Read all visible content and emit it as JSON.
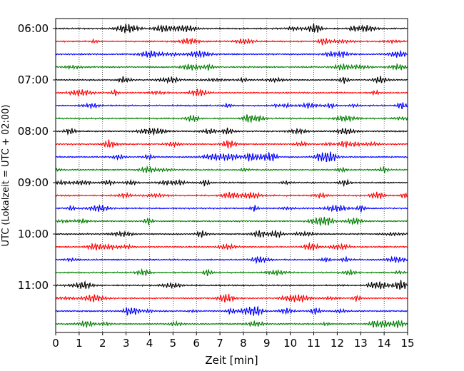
{
  "chart_data": {
    "type": "line",
    "title": "",
    "xlabel": "Zeit  [min]",
    "ylabel": "UTC (Lokalzeit = UTC + 02:00)",
    "xlim": [
      0,
      15
    ],
    "x_ticks": [
      "0",
      "1",
      "2",
      "3",
      "4",
      "5",
      "6",
      "7",
      "8",
      "9",
      "10",
      "11",
      "12",
      "13",
      "14",
      "15"
    ],
    "y_tick_labels": [
      "06:00",
      "07:00",
      "08:00",
      "09:00",
      "10:00",
      "11:00"
    ],
    "grid": "vertical dotted lines at each minute",
    "trace_interval_minutes": 15,
    "trace_start_times": [
      "06:00",
      "06:15",
      "06:30",
      "06:45",
      "07:00",
      "07:15",
      "07:30",
      "07:45",
      "08:00",
      "08:15",
      "08:30",
      "08:45",
      "09:00",
      "09:15",
      "09:30",
      "09:45",
      "10:00",
      "10:15",
      "10:30",
      "10:45",
      "11:00",
      "11:15",
      "11:30",
      "11:45"
    ],
    "trace_color_cycle": [
      "#000000",
      "#ff0000",
      "#0000ff",
      "#008000"
    ],
    "amplitude_note_minutes": 0
  }
}
